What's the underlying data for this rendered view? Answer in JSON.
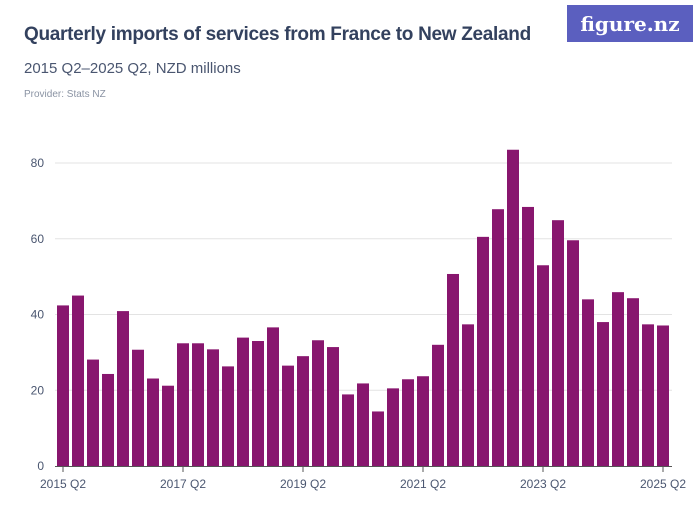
{
  "title": "Quarterly imports of services from France to New Zealand",
  "subtitle": "2015 Q2–2025 Q2, NZD millions",
  "provider": "Provider: Stats NZ",
  "logo": "figure.nz",
  "colors": {
    "bar": "#88166e",
    "grid": "#e3e3e3",
    "text": "#33415e",
    "logo_bg": "#5b5fbf"
  },
  "chart_data": {
    "type": "bar",
    "title": "Quarterly imports of services from France to New Zealand",
    "xlabel": "",
    "ylabel": "",
    "ylim": [
      0,
      80
    ],
    "grid": true,
    "yticks": [
      0,
      20,
      40,
      60,
      80
    ],
    "xtick_labels": [
      {
        "index": 0,
        "label": "2015 Q2"
      },
      {
        "index": 8,
        "label": "2017 Q2"
      },
      {
        "index": 16,
        "label": "2019 Q2"
      },
      {
        "index": 24,
        "label": "2021 Q2"
      },
      {
        "index": 32,
        "label": "2023 Q2"
      },
      {
        "index": 40,
        "label": "2025 Q2"
      }
    ],
    "categories": [
      "2015 Q2",
      "2015 Q3",
      "2015 Q4",
      "2016 Q1",
      "2016 Q2",
      "2016 Q3",
      "2016 Q4",
      "2017 Q1",
      "2017 Q2",
      "2017 Q3",
      "2017 Q4",
      "2018 Q1",
      "2018 Q2",
      "2018 Q3",
      "2018 Q4",
      "2019 Q1",
      "2019 Q2",
      "2019 Q3",
      "2019 Q4",
      "2020 Q1",
      "2020 Q2",
      "2020 Q3",
      "2020 Q4",
      "2021 Q1",
      "2021 Q2",
      "2021 Q3",
      "2021 Q4",
      "2022 Q1",
      "2022 Q2",
      "2022 Q3",
      "2022 Q4",
      "2023 Q1",
      "2023 Q2",
      "2023 Q3",
      "2023 Q4",
      "2024 Q1",
      "2024 Q2",
      "2024 Q3",
      "2024 Q4",
      "2025 Q1",
      "2025 Q2"
    ],
    "values": [
      42.4,
      45.0,
      28.1,
      24.3,
      40.9,
      30.7,
      23.1,
      21.2,
      32.4,
      32.4,
      30.8,
      26.3,
      33.9,
      33.0,
      36.6,
      26.5,
      29.0,
      33.2,
      31.4,
      18.9,
      21.8,
      14.4,
      20.5,
      22.9,
      23.7,
      32.0,
      50.7,
      37.4,
      60.5,
      67.8,
      83.5,
      68.4,
      53.0,
      64.9,
      59.6,
      44.0,
      38.0,
      45.9,
      44.3,
      37.4,
      37.1
    ]
  }
}
